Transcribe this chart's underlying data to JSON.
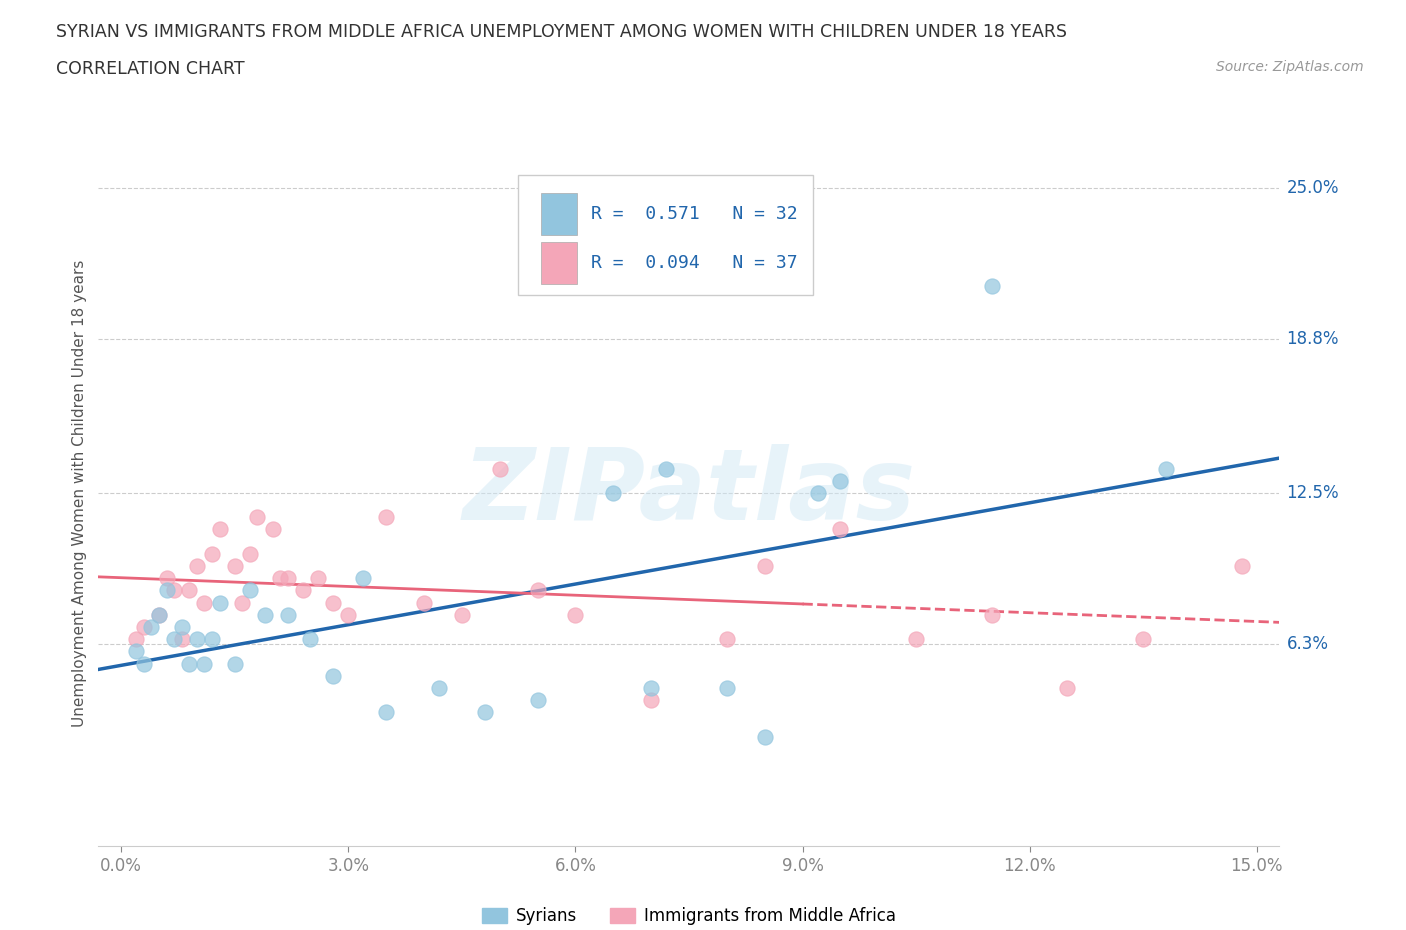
{
  "title_line1": "SYRIAN VS IMMIGRANTS FROM MIDDLE AFRICA UNEMPLOYMENT AMONG WOMEN WITH CHILDREN UNDER 18 YEARS",
  "title_line2": "CORRELATION CHART",
  "source": "Source: ZipAtlas.com",
  "xlabel_ticks": [
    0.0,
    3.0,
    6.0,
    9.0,
    12.0,
    15.0
  ],
  "xlabel_labels": [
    "0.0%",
    "3.0%",
    "6.0%",
    "9.0%",
    "12.0%",
    "15.0%"
  ],
  "ylabel_right_ticks": [
    6.3,
    12.5,
    18.8,
    25.0
  ],
  "ylabel_right_labels": [
    "6.3%",
    "12.5%",
    "18.8%",
    "25.0%"
  ],
  "xmin": 0.0,
  "xmax": 15.0,
  "ymin": -2.0,
  "ymax": 27.0,
  "watermark": "ZIPatlas",
  "blue_color": "#92c5de",
  "pink_color": "#f4a6b8",
  "blue_line_color": "#2166ac",
  "pink_line_color": "#e8647a",
  "syrians_x": [
    0.2,
    0.3,
    0.4,
    0.5,
    0.6,
    0.7,
    0.8,
    0.9,
    1.0,
    1.1,
    1.2,
    1.3,
    1.5,
    1.7,
    1.9,
    2.2,
    2.5,
    2.8,
    3.2,
    3.5,
    4.2,
    4.8,
    5.5,
    6.5,
    7.0,
    7.2,
    8.0,
    8.5,
    9.2,
    9.5,
    11.5,
    13.8
  ],
  "syrians_y": [
    6.0,
    5.5,
    7.0,
    7.5,
    8.5,
    6.5,
    7.0,
    5.5,
    6.5,
    5.5,
    6.5,
    8.0,
    5.5,
    8.5,
    7.5,
    7.5,
    6.5,
    5.0,
    9.0,
    3.5,
    4.5,
    3.5,
    4.0,
    12.5,
    4.5,
    13.5,
    4.5,
    2.5,
    12.5,
    13.0,
    21.0,
    13.5
  ],
  "africa_x": [
    0.2,
    0.3,
    0.5,
    0.6,
    0.7,
    0.8,
    0.9,
    1.0,
    1.1,
    1.2,
    1.3,
    1.5,
    1.6,
    1.7,
    1.8,
    2.0,
    2.1,
    2.2,
    2.4,
    2.6,
    2.8,
    3.0,
    3.5,
    4.0,
    4.5,
    5.0,
    5.5,
    6.0,
    7.0,
    8.0,
    8.5,
    9.5,
    10.5,
    11.5,
    12.5,
    13.5,
    14.8
  ],
  "africa_y": [
    6.5,
    7.0,
    7.5,
    9.0,
    8.5,
    6.5,
    8.5,
    9.5,
    8.0,
    10.0,
    11.0,
    9.5,
    8.0,
    10.0,
    11.5,
    11.0,
    9.0,
    9.0,
    8.5,
    9.0,
    8.0,
    7.5,
    11.5,
    8.0,
    7.5,
    13.5,
    8.5,
    7.5,
    4.0,
    6.5,
    9.5,
    11.0,
    6.5,
    7.5,
    4.5,
    6.5,
    9.5
  ],
  "legend_text_row1": "R =  0.571   N = 32",
  "legend_text_row2": "R =  0.094   N = 37",
  "legend_label1": "Syrians",
  "legend_label2": "Immigrants from Middle Africa"
}
